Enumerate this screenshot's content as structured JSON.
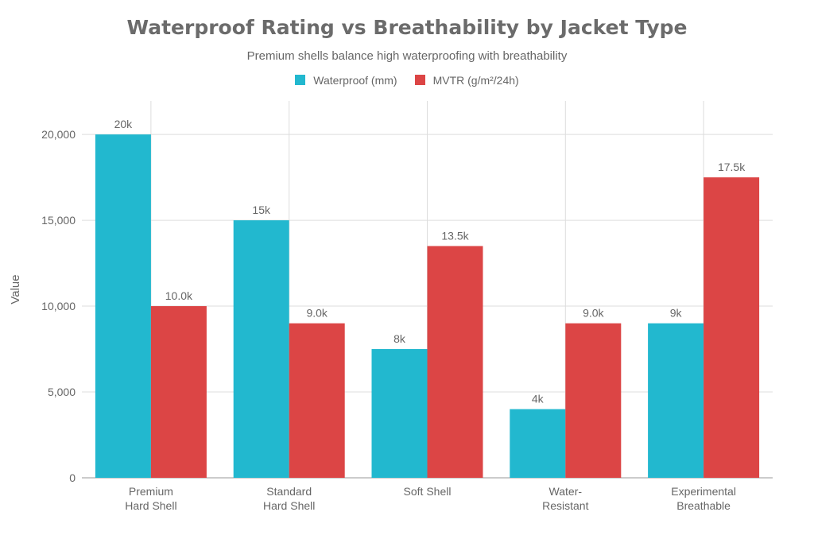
{
  "chart_data": {
    "type": "bar",
    "title": "Waterproof Rating vs Breathability by Jacket Type",
    "subtitle": "Premium shells balance high waterproofing with breathability",
    "ylabel": "Value",
    "xlabel": "",
    "ylim": [
      0,
      21950
    ],
    "yticks": [
      0,
      5000,
      10000,
      15000,
      20000
    ],
    "ytick_labels": [
      "0",
      "5,000",
      "10,000",
      "15,000",
      "20,000"
    ],
    "grid": true,
    "legend_placement": "top-center",
    "categories": [
      [
        "Premium",
        "Hard Shell"
      ],
      [
        "Standard",
        "Hard Shell"
      ],
      [
        "Soft Shell"
      ],
      [
        "Water-",
        "Resistant"
      ],
      [
        "Experimental",
        "Breathable"
      ]
    ],
    "series": [
      {
        "name": "Waterproof (mm)",
        "color": "#22b8cf",
        "values": [
          20000,
          15000,
          7500,
          4000,
          9000
        ],
        "labels": [
          "20k",
          "15k",
          "8k",
          "4k",
          "9k"
        ]
      },
      {
        "name": "MVTR (g/m²/24h)",
        "color": "#dc4545",
        "values": [
          10000,
          9000,
          13500,
          9000,
          17500
        ],
        "labels": [
          "10.0k",
          "9.0k",
          "13.5k",
          "9.0k",
          "17.5k"
        ]
      }
    ]
  }
}
